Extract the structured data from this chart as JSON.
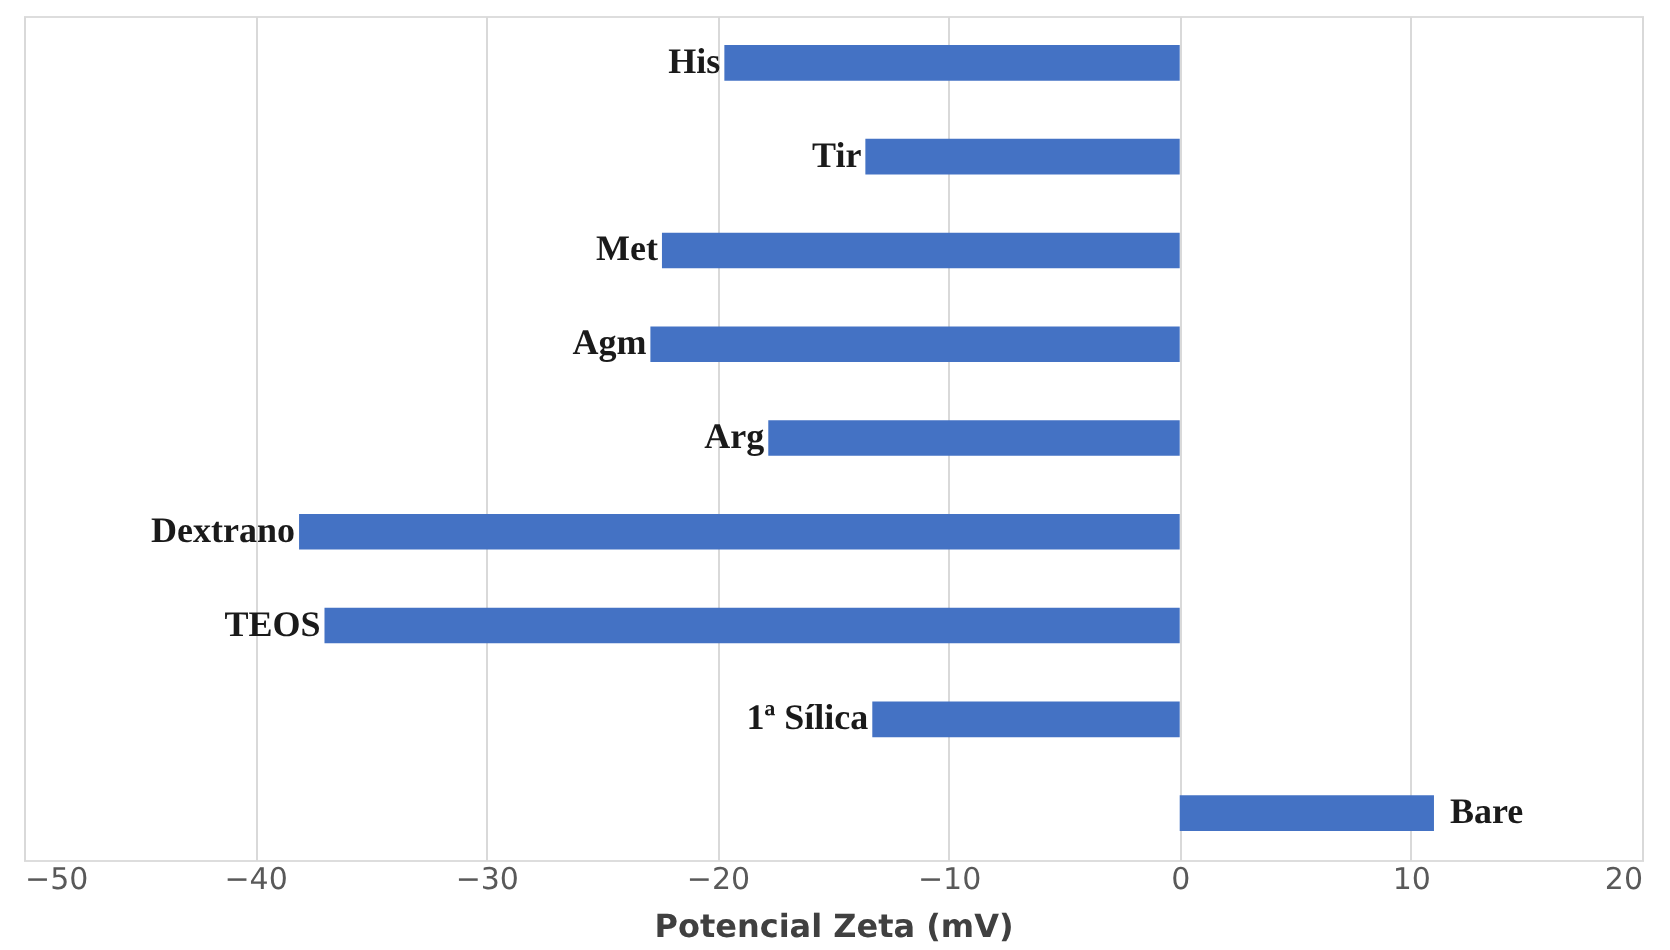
{
  "chart_data": {
    "type": "bar",
    "orientation": "horizontal",
    "xlabel": "Potencial Zeta (mV)",
    "categories": [
      "His",
      "Tir",
      "Met",
      "Agm",
      "Arg",
      "Dextrano",
      "TEOS",
      "1ª Sílica",
      "Bare"
    ],
    "values": [
      -19.7,
      -13.6,
      -22.4,
      -22.9,
      -17.8,
      -38.1,
      -37.0,
      -13.3,
      11.0
    ],
    "color": "#4472c4",
    "xlim": [
      -50,
      20
    ],
    "xticks": [
      -50,
      -40,
      -30,
      -20,
      -10,
      0,
      10,
      20
    ],
    "grid": "x",
    "tick_labels": "x"
  }
}
